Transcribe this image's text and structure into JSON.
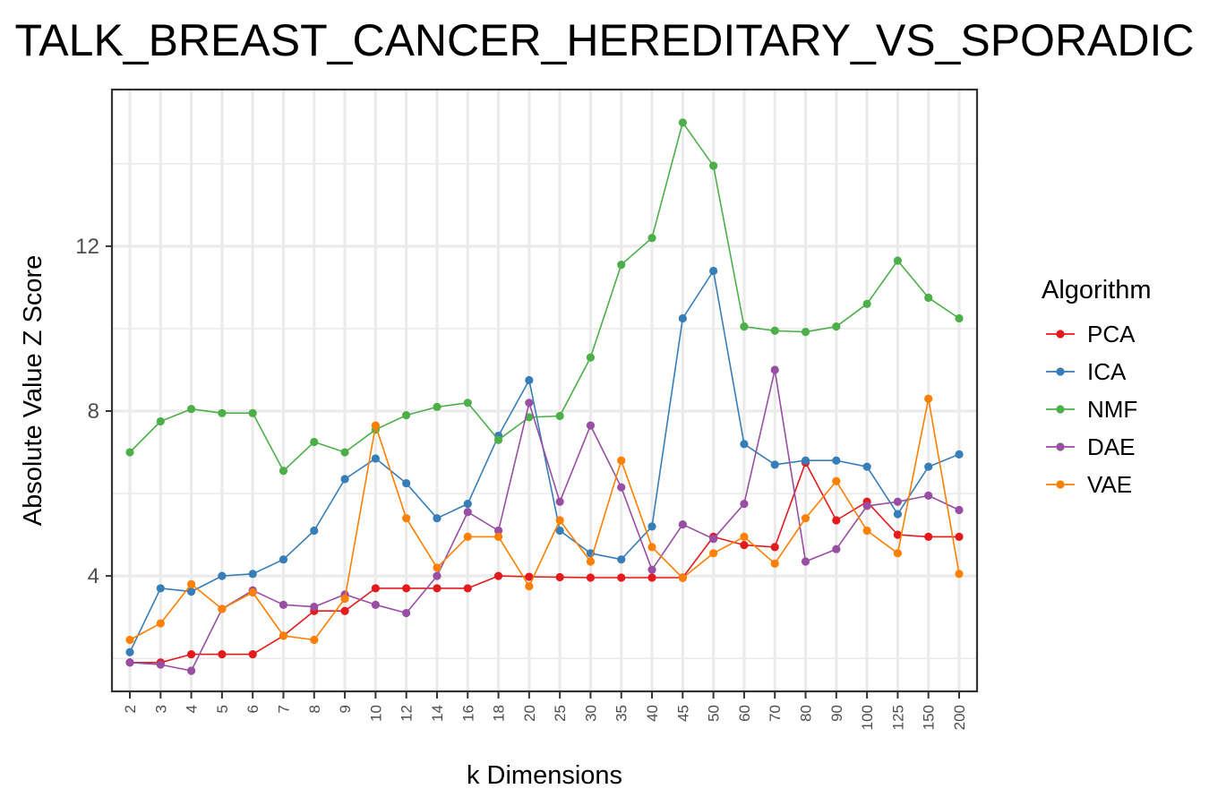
{
  "chart_data": {
    "type": "line",
    "title": "TALK_BREAST_CANCER_HEREDITARY_VS_SPORADIC",
    "xlabel": "k Dimensions",
    "ylabel": "Absolute Value Z Score",
    "categories": [
      "2",
      "3",
      "4",
      "5",
      "6",
      "7",
      "8",
      "9",
      "10",
      "12",
      "14",
      "16",
      "18",
      "20",
      "25",
      "30",
      "35",
      "40",
      "45",
      "50",
      "60",
      "70",
      "80",
      "90",
      "100",
      "125",
      "150",
      "200"
    ],
    "ylim": [
      1.2,
      15.8
    ],
    "yticks": [
      4,
      8,
      12
    ],
    "grid": true,
    "legend": {
      "title": "Algorithm",
      "position": "right"
    },
    "series": [
      {
        "name": "PCA",
        "color": "#e41a1c",
        "values": [
          1.9,
          1.9,
          2.1,
          2.1,
          2.1,
          2.55,
          3.15,
          3.15,
          3.7,
          3.7,
          3.7,
          3.7,
          4.0,
          3.98,
          3.97,
          3.96,
          3.96,
          3.96,
          3.96,
          4.95,
          4.75,
          4.7,
          6.75,
          5.35,
          5.8,
          5.0,
          4.95,
          4.95
        ]
      },
      {
        "name": "ICA",
        "color": "#377eb8",
        "values": [
          2.15,
          3.7,
          3.62,
          4.0,
          4.05,
          4.4,
          5.1,
          6.35,
          6.85,
          6.25,
          5.4,
          5.75,
          7.4,
          8.75,
          5.1,
          4.55,
          4.4,
          5.2,
          10.25,
          11.4,
          7.2,
          6.7,
          6.8,
          6.8,
          6.65,
          5.5,
          6.65,
          6.95
        ]
      },
      {
        "name": "NMF",
        "color": "#4daf4a",
        "values": [
          7.0,
          7.75,
          8.05,
          7.95,
          7.95,
          6.55,
          7.25,
          7.0,
          7.55,
          7.9,
          8.1,
          8.2,
          7.3,
          7.85,
          7.88,
          9.3,
          11.55,
          12.2,
          15.0,
          13.95,
          10.05,
          9.95,
          9.92,
          10.05,
          10.6,
          11.65,
          10.75,
          10.25
        ]
      },
      {
        "name": "DAE",
        "color": "#984ea3",
        "values": [
          1.9,
          1.85,
          1.7,
          3.2,
          3.65,
          3.3,
          3.25,
          3.55,
          3.3,
          3.1,
          4.0,
          5.55,
          5.1,
          8.2,
          5.8,
          7.65,
          6.15,
          4.15,
          5.25,
          4.9,
          5.75,
          9.0,
          4.35,
          4.65,
          5.7,
          5.8,
          5.95,
          5.6
        ]
      },
      {
        "name": "VAE",
        "color": "#ff7f00",
        "values": [
          2.45,
          2.85,
          3.8,
          3.2,
          3.6,
          2.55,
          2.45,
          3.45,
          7.65,
          5.4,
          4.2,
          4.95,
          4.95,
          3.75,
          5.35,
          4.35,
          6.8,
          4.7,
          3.95,
          4.55,
          4.95,
          4.3,
          5.4,
          6.3,
          5.1,
          4.55,
          8.3,
          4.05
        ]
      }
    ]
  }
}
